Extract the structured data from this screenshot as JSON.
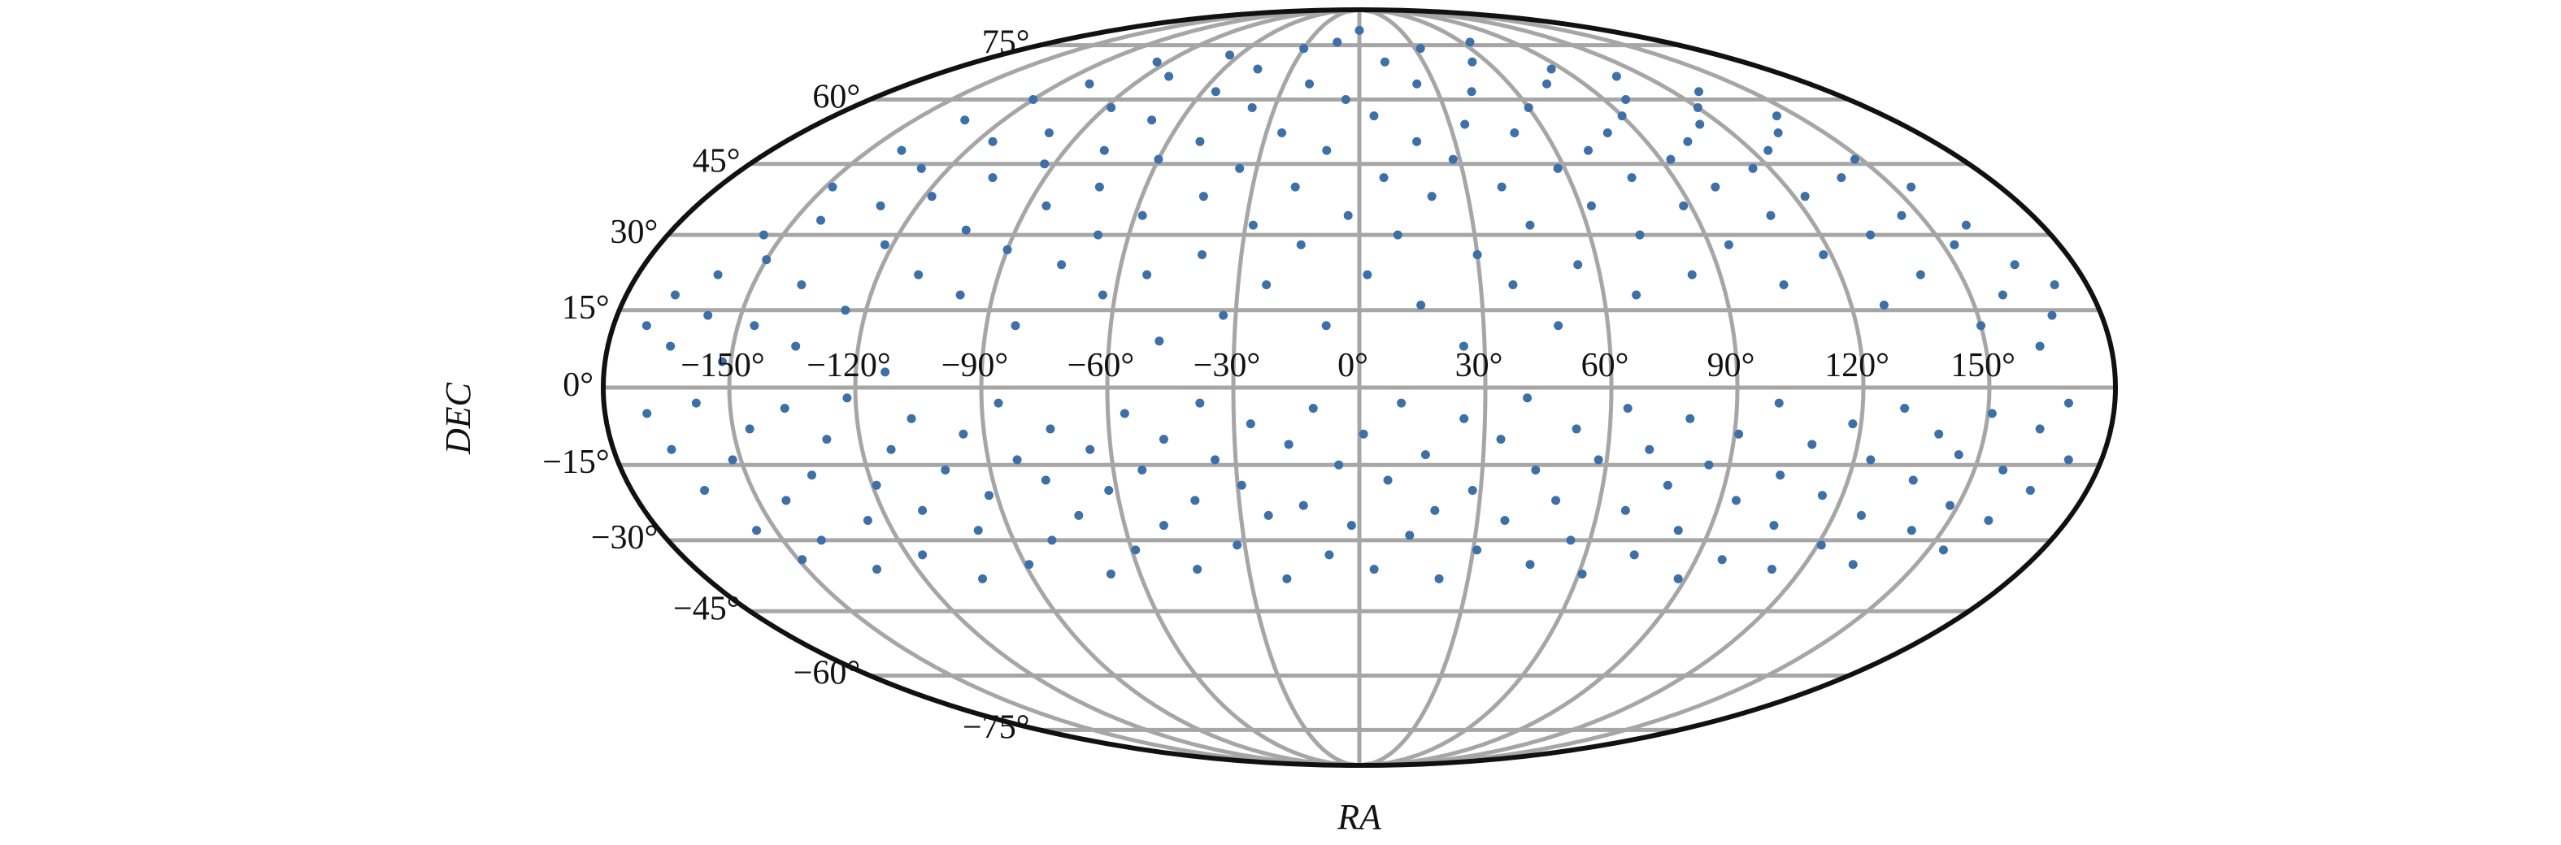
{
  "chart_data": {
    "type": "scatter",
    "projection": "mollweide",
    "xlabel": "RA",
    "ylabel": "DEC",
    "xlim": [
      -180,
      180
    ],
    "ylim": [
      -90,
      90
    ],
    "grid": true,
    "x_ticks": [
      -150,
      -120,
      -90,
      -60,
      -30,
      0,
      30,
      60,
      90,
      120,
      150
    ],
    "x_tick_labels": [
      "−150°",
      "−120°",
      "−90°",
      "−60°",
      "−30°",
      "0°",
      "30°",
      "60°",
      "90°",
      "120°",
      "150°"
    ],
    "y_ticks": [
      75,
      60,
      45,
      30,
      15,
      0,
      -15,
      -30,
      -45,
      -60,
      -75
    ],
    "y_tick_labels": [
      "75°",
      "60°",
      "45°",
      "30°",
      "15°",
      "0°",
      "−15°",
      "−30°",
      "−45°",
      "−60°",
      "−75°"
    ],
    "marker_color": "#3d6fa8",
    "grid_color": "#a6a6a6",
    "outline_color": "#111111",
    "dec_coverage": [
      -40,
      90
    ],
    "points": [
      [
        -172,
        12
      ],
      [
        -168,
        18
      ],
      [
        -165,
        8
      ],
      [
        -160,
        22
      ],
      [
        -158,
        14
      ],
      [
        -155,
        30
      ],
      [
        -152,
        5
      ],
      [
        -150,
        25
      ],
      [
        -148,
        40
      ],
      [
        -146,
        12
      ],
      [
        -143,
        33
      ],
      [
        -140,
        48
      ],
      [
        -138,
        20
      ],
      [
        -135,
        8
      ],
      [
        -133,
        55
      ],
      [
        -130,
        36
      ],
      [
        -128,
        44
      ],
      [
        -125,
        15
      ],
      [
        -122,
        28
      ],
      [
        -120,
        60
      ],
      [
        -118,
        38
      ],
      [
        -115,
        50
      ],
      [
        -113,
        3
      ],
      [
        -110,
        22
      ],
      [
        -108,
        64
      ],
      [
        -105,
        42
      ],
      [
        -103,
        31
      ],
      [
        -100,
        52
      ],
      [
        -98,
        18
      ],
      [
        -95,
        70
      ],
      [
        -93,
        45
      ],
      [
        -90,
        27
      ],
      [
        -88,
        58
      ],
      [
        -85,
        36
      ],
      [
        -83,
        12
      ],
      [
        -80,
        66
      ],
      [
        -78,
        48
      ],
      [
        -75,
        24
      ],
      [
        -73,
        40
      ],
      [
        -70,
        55
      ],
      [
        -68,
        30
      ],
      [
        -65,
        72
      ],
      [
        -63,
        18
      ],
      [
        -60,
        46
      ],
      [
        -58,
        34
      ],
      [
        -55,
        62
      ],
      [
        -53,
        22
      ],
      [
        -50,
        50
      ],
      [
        -48,
        9
      ],
      [
        -45,
        68
      ],
      [
        -43,
        38
      ],
      [
        -40,
        26
      ],
      [
        -38,
        58
      ],
      [
        -35,
        44
      ],
      [
        -33,
        14
      ],
      [
        -30,
        74
      ],
      [
        -28,
        32
      ],
      [
        -25,
        52
      ],
      [
        -23,
        20
      ],
      [
        -20,
        64
      ],
      [
        -18,
        40
      ],
      [
        -15,
        28
      ],
      [
        -13,
        76
      ],
      [
        -10,
        48
      ],
      [
        -8,
        12
      ],
      [
        -5,
        60
      ],
      [
        -3,
        34
      ],
      [
        0,
        80
      ],
      [
        2,
        22
      ],
      [
        5,
        56
      ],
      [
        7,
        42
      ],
      [
        10,
        30
      ],
      [
        12,
        70
      ],
      [
        15,
        16
      ],
      [
        18,
        50
      ],
      [
        20,
        38
      ],
      [
        23,
        64
      ],
      [
        25,
        8
      ],
      [
        28,
        46
      ],
      [
        30,
        26
      ],
      [
        33,
        74
      ],
      [
        35,
        54
      ],
      [
        38,
        20
      ],
      [
        40,
        40
      ],
      [
        43,
        62
      ],
      [
        45,
        32
      ],
      [
        48,
        12
      ],
      [
        50,
        52
      ],
      [
        53,
        70
      ],
      [
        55,
        24
      ],
      [
        58,
        44
      ],
      [
        60,
        58
      ],
      [
        63,
        36
      ],
      [
        65,
        76
      ],
      [
        68,
        18
      ],
      [
        70,
        48
      ],
      [
        73,
        30
      ],
      [
        75,
        64
      ],
      [
        78,
        42
      ],
      [
        80,
        52
      ],
      [
        83,
        22
      ],
      [
        85,
        68
      ],
      [
        88,
        36
      ],
      [
        90,
        56
      ],
      [
        93,
        46
      ],
      [
        95,
        28
      ],
      [
        98,
        60
      ],
      [
        100,
        40
      ],
      [
        103,
        50
      ],
      [
        105,
        20
      ],
      [
        108,
        66
      ],
      [
        110,
        34
      ],
      [
        113,
        54
      ],
      [
        115,
        44
      ],
      [
        118,
        26
      ],
      [
        120,
        58
      ],
      [
        123,
        38
      ],
      [
        125,
        48
      ],
      [
        128,
        16
      ],
      [
        130,
        62
      ],
      [
        133,
        30
      ],
      [
        135,
        52
      ],
      [
        138,
        42
      ],
      [
        140,
        22
      ],
      [
        143,
        56
      ],
      [
        145,
        34
      ],
      [
        148,
        46
      ],
      [
        150,
        12
      ],
      [
        153,
        28
      ],
      [
        155,
        40
      ],
      [
        158,
        18
      ],
      [
        160,
        32
      ],
      [
        163,
        8
      ],
      [
        165,
        24
      ],
      [
        168,
        14
      ],
      [
        172,
        20
      ],
      [
        -170,
        -5
      ],
      [
        -166,
        -12
      ],
      [
        -162,
        -20
      ],
      [
        -158,
        -3
      ],
      [
        -155,
        -28
      ],
      [
        -152,
        -14
      ],
      [
        -149,
        -34
      ],
      [
        -146,
        -8
      ],
      [
        -143,
        -22
      ],
      [
        -140,
        -30
      ],
      [
        -137,
        -4
      ],
      [
        -134,
        -17
      ],
      [
        -131,
        -36
      ],
      [
        -128,
        -10
      ],
      [
        -125,
        -26
      ],
      [
        -122,
        -2
      ],
      [
        -119,
        -19
      ],
      [
        -116,
        -33
      ],
      [
        -113,
        -12
      ],
      [
        -110,
        -24
      ],
      [
        -107,
        -6
      ],
      [
        -104,
        -38
      ],
      [
        -101,
        -16
      ],
      [
        -98,
        -28
      ],
      [
        -95,
        -9
      ],
      [
        -92,
        -21
      ],
      [
        -89,
        -35
      ],
      [
        -86,
        -3
      ],
      [
        -83,
        -14
      ],
      [
        -80,
        -30
      ],
      [
        -77,
        -18
      ],
      [
        -74,
        -8
      ],
      [
        -71,
        -25
      ],
      [
        -68,
        -37
      ],
      [
        -65,
        -12
      ],
      [
        -62,
        -20
      ],
      [
        -59,
        -32
      ],
      [
        -56,
        -5
      ],
      [
        -53,
        -16
      ],
      [
        -50,
        -27
      ],
      [
        -47,
        -10
      ],
      [
        -44,
        -36
      ],
      [
        -41,
        -22
      ],
      [
        -38,
        -3
      ],
      [
        -35,
        -14
      ],
      [
        -32,
        -31
      ],
      [
        -29,
        -19
      ],
      [
        -26,
        -7
      ],
      [
        -23,
        -25
      ],
      [
        -20,
        -38
      ],
      [
        -17,
        -11
      ],
      [
        -14,
        -23
      ],
      [
        -11,
        -4
      ],
      [
        -8,
        -33
      ],
      [
        -5,
        -15
      ],
      [
        -2,
        -27
      ],
      [
        1,
        -9
      ],
      [
        4,
        -36
      ],
      [
        7,
        -18
      ],
      [
        10,
        -3
      ],
      [
        13,
        -29
      ],
      [
        16,
        -13
      ],
      [
        19,
        -24
      ],
      [
        22,
        -38
      ],
      [
        25,
        -6
      ],
      [
        28,
        -20
      ],
      [
        31,
        -32
      ],
      [
        34,
        -10
      ],
      [
        37,
        -26
      ],
      [
        40,
        -2
      ],
      [
        43,
        -16
      ],
      [
        46,
        -35
      ],
      [
        49,
        -22
      ],
      [
        52,
        -8
      ],
      [
        55,
        -30
      ],
      [
        58,
        -14
      ],
      [
        61,
        -37
      ],
      [
        64,
        -4
      ],
      [
        67,
        -24
      ],
      [
        70,
        -12
      ],
      [
        73,
        -33
      ],
      [
        76,
        -19
      ],
      [
        79,
        -6
      ],
      [
        82,
        -28
      ],
      [
        85,
        -15
      ],
      [
        88,
        -38
      ],
      [
        91,
        -9
      ],
      [
        94,
        -22
      ],
      [
        97,
        -34
      ],
      [
        100,
        -3
      ],
      [
        103,
        -17
      ],
      [
        106,
        -27
      ],
      [
        109,
        -11
      ],
      [
        112,
        -36
      ],
      [
        115,
        -21
      ],
      [
        118,
        -7
      ],
      [
        121,
        -31
      ],
      [
        124,
        -14
      ],
      [
        127,
        -25
      ],
      [
        130,
        -4
      ],
      [
        133,
        -35
      ],
      [
        136,
        -18
      ],
      [
        139,
        -9
      ],
      [
        142,
        -28
      ],
      [
        145,
        -13
      ],
      [
        148,
        -23
      ],
      [
        151,
        -5
      ],
      [
        154,
        -32
      ],
      [
        157,
        -16
      ],
      [
        160,
        -26
      ],
      [
        163,
        -8
      ],
      [
        166,
        -20
      ],
      [
        169,
        -3
      ],
      [
        172,
        -14
      ]
    ]
  }
}
